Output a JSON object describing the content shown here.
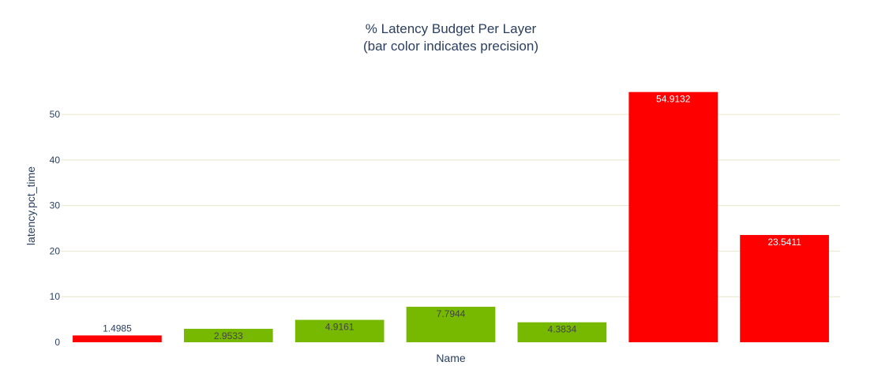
{
  "chart_data": {
    "type": "bar",
    "title": "% Latency Budget Per Layer",
    "subtitle": "(bar color indicates precision)",
    "xlabel": "Name",
    "ylabel": "latency.pct_time",
    "categories": [
      "",
      "",
      "",
      "",
      "",
      "",
      ""
    ],
    "values": [
      1.4985,
      2.9533,
      4.9161,
      7.7944,
      4.3834,
      54.9132,
      23.5411
    ],
    "value_labels": [
      "1.4985",
      "2.9533",
      "4.9161",
      "7.7944",
      "4.3834",
      "54.9132",
      "23.5411"
    ],
    "bar_colors": [
      "#ff0000",
      "#76b900",
      "#76b900",
      "#76b900",
      "#76b900",
      "#ff0000",
      "#ff0000"
    ],
    "ylim": [
      0,
      57.8
    ],
    "yticks": [
      0,
      10,
      20,
      30,
      40,
      50
    ],
    "ytick_labels": [
      "0",
      "10",
      "20",
      "30",
      "40",
      "50"
    ],
    "grid": true,
    "legend": "none",
    "colors": {
      "grid": "#e8e6c8",
      "text": "#2a3f5f",
      "label_inside_dark_bar": "#ffffff",
      "label_inside_light_bar": "#444444",
      "label_outside": "#2a3f5f"
    }
  }
}
